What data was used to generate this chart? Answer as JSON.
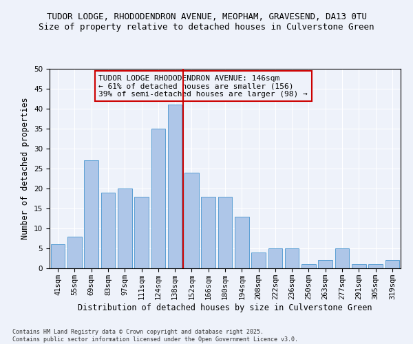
{
  "title1": "TUDOR LODGE, RHODODENDRON AVENUE, MEOPHAM, GRAVESEND, DA13 0TU",
  "title2": "Size of property relative to detached houses in Culverstone Green",
  "xlabel": "Distribution of detached houses by size in Culverstone Green",
  "ylabel": "Number of detached properties",
  "categories": [
    "41sqm",
    "55sqm",
    "69sqm",
    "83sqm",
    "97sqm",
    "111sqm",
    "124sqm",
    "138sqm",
    "152sqm",
    "166sqm",
    "180sqm",
    "194sqm",
    "208sqm",
    "222sqm",
    "236sqm",
    "250sqm",
    "263sqm",
    "277sqm",
    "291sqm",
    "305sqm",
    "319sqm"
  ],
  "values": [
    6,
    8,
    27,
    19,
    20,
    18,
    35,
    41,
    24,
    18,
    18,
    13,
    4,
    5,
    5,
    1,
    2,
    5,
    1,
    1,
    2
  ],
  "bar_color": "#aec6e8",
  "bar_edge_color": "#5a9fd4",
  "vline_color": "#cc0000",
  "annotation_title": "TUDOR LODGE RHODODENDRON AVENUE: 146sqm",
  "annotation_line2": "← 61% of detached houses are smaller (156)",
  "annotation_line3": "39% of semi-detached houses are larger (98) →",
  "annotation_box_color": "#cc0000",
  "ylim": [
    0,
    50
  ],
  "yticks": [
    0,
    5,
    10,
    15,
    20,
    25,
    30,
    35,
    40,
    45,
    50
  ],
  "background_color": "#eef2fa",
  "footnote": "Contains HM Land Registry data © Crown copyright and database right 2025.\nContains public sector information licensed under the Open Government Licence v3.0.",
  "title_fontsize": 9,
  "subtitle_fontsize": 9,
  "axis_label_fontsize": 8.5,
  "tick_fontsize": 7.5,
  "annotation_fontsize": 8
}
